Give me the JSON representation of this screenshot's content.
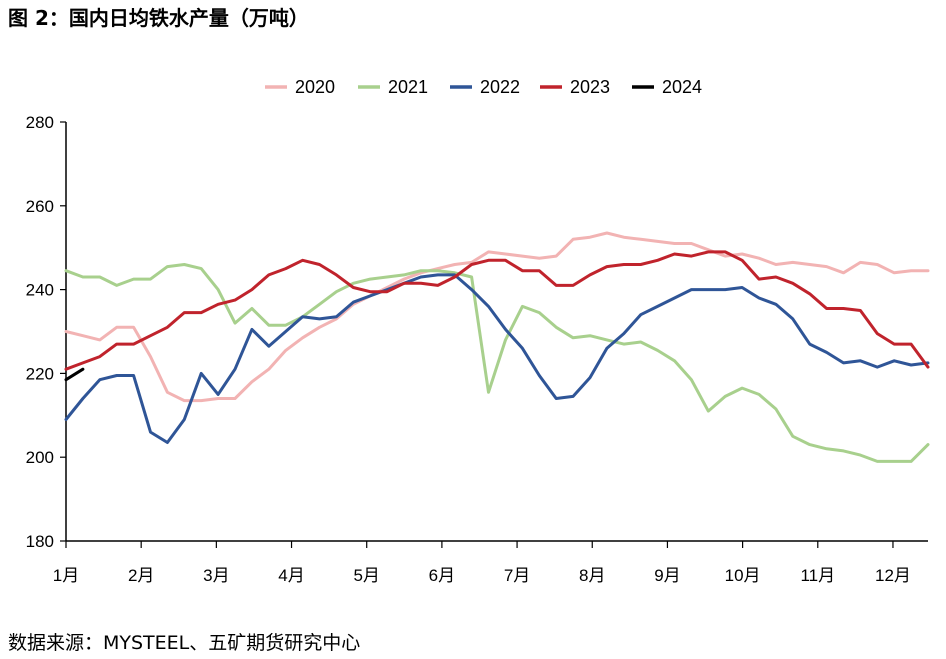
{
  "header": {
    "title": "图 2：国内日均铁水产量（万吨）"
  },
  "footer": {
    "source": "数据来源：MYSTEEL、五矿期货研究中心"
  },
  "chart_data": {
    "type": "line",
    "title": "图 2：国内日均铁水产量（万吨）",
    "xlabel": "",
    "ylabel": "",
    "x_tick_labels": [
      "1月",
      "2月",
      "3月",
      "4月",
      "5月",
      "6月",
      "7月",
      "8月",
      "9月",
      "10月",
      "11月",
      "12月"
    ],
    "xlim": [
      1,
      52
    ],
    "ylim": [
      180,
      280
    ],
    "y_ticks": [
      180,
      200,
      220,
      240,
      260,
      280
    ],
    "grid": false,
    "legend_position": "top",
    "series": [
      {
        "name": "2020",
        "color": "#f2b3b3",
        "values": [
          230.0,
          229.0,
          228.0,
          231.0,
          231.0,
          224.0,
          215.5,
          213.5,
          213.5,
          214.0,
          214.0,
          218.0,
          221.0,
          225.5,
          228.5,
          231.0,
          233.0,
          236.5,
          238.5,
          240.5,
          242.5,
          244.0,
          245.0,
          246.0,
          246.5,
          249.0,
          248.5,
          248.0,
          247.5,
          248.0,
          252.0,
          252.5,
          253.5,
          252.5,
          252.0,
          251.5,
          251.0,
          251.0,
          249.5,
          248.0,
          248.5,
          247.5,
          246.0,
          246.5,
          246.0,
          245.5,
          244.0,
          246.5,
          246.0,
          244.0,
          244.5,
          244.5
        ]
      },
      {
        "name": "2021",
        "color": "#a8d08d",
        "values": [
          244.5,
          243.0,
          243.0,
          241.0,
          242.5,
          242.5,
          245.5,
          246.0,
          245.0,
          240.0,
          232.0,
          235.5,
          231.5,
          231.5,
          233.5,
          236.5,
          239.5,
          241.5,
          242.5,
          243.0,
          243.5,
          244.5,
          244.5,
          244.0,
          243.0,
          215.5,
          228.0,
          236.0,
          234.5,
          231.0,
          228.5,
          229.0,
          228.0,
          227.0,
          227.5,
          225.5,
          223.0,
          218.5,
          211.0,
          214.5,
          216.5,
          215.0,
          211.5,
          205.0,
          203.0,
          202.0,
          201.5,
          200.5,
          199.0,
          199.0,
          199.0,
          203.0
        ]
      },
      {
        "name": "2022",
        "color": "#2f5597",
        "values": [
          209.0,
          214.0,
          218.5,
          219.5,
          219.5,
          206.0,
          203.5,
          209.0,
          220.0,
          215.0,
          221.0,
          230.5,
          226.5,
          230.0,
          233.5,
          233.0,
          233.5,
          237.0,
          238.5,
          240.0,
          241.5,
          243.0,
          243.5,
          243.5,
          240.0,
          236.0,
          230.5,
          226.0,
          219.5,
          214.0,
          214.5,
          219.0,
          226.0,
          229.5,
          234.0,
          236.0,
          238.0,
          240.0,
          240.0,
          240.0,
          240.5,
          238.0,
          236.5,
          233.0,
          227.0,
          225.0,
          222.5,
          223.0,
          221.5,
          223.0,
          222.0,
          222.5
        ]
      },
      {
        "name": "2023",
        "color": "#c0232c",
        "values": [
          221.0,
          222.5,
          224.0,
          227.0,
          227.0,
          229.0,
          231.0,
          234.5,
          234.5,
          236.5,
          237.5,
          240.0,
          243.5,
          245.0,
          247.0,
          246.0,
          243.5,
          240.5,
          239.5,
          239.5,
          241.5,
          241.5,
          241.0,
          243.0,
          246.0,
          247.0,
          247.0,
          244.5,
          244.5,
          241.0,
          241.0,
          243.5,
          245.5,
          246.0,
          246.0,
          247.0,
          248.5,
          248.0,
          249.0,
          249.0,
          247.0,
          242.5,
          243.0,
          241.5,
          239.0,
          235.5,
          235.5,
          235.0,
          229.5,
          227.0,
          227.0,
          221.5
        ]
      },
      {
        "name": "2024",
        "color": "#000000",
        "values": [
          218.5,
          221.0
        ]
      }
    ]
  }
}
